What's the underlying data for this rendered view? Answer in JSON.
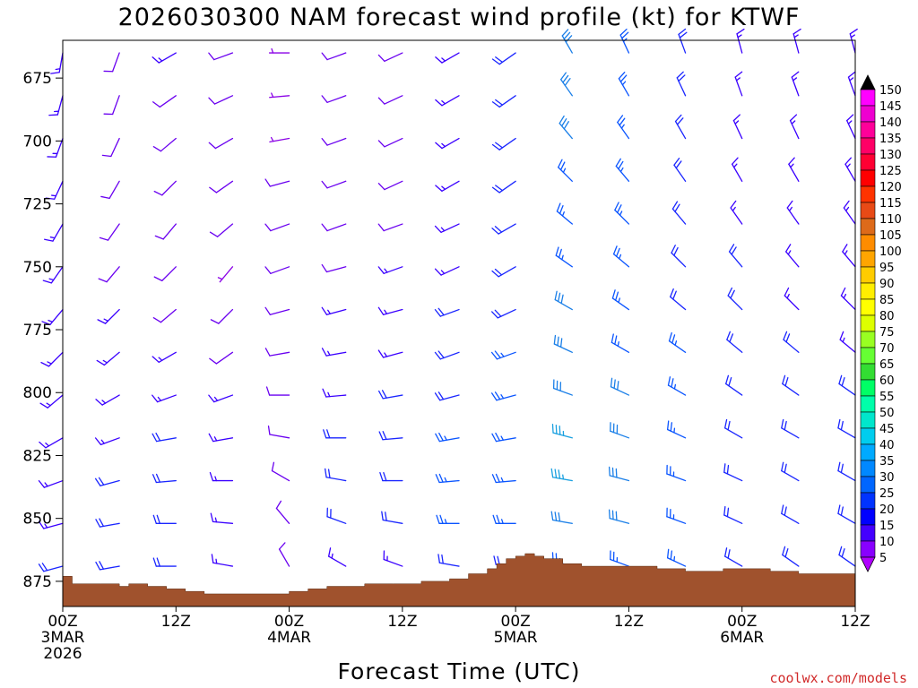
{
  "chart_data": {
    "type": "wind-barb-timeheight",
    "title": "2026030300 NAM forecast wind profile (kt) for KTWF",
    "xlabel": "Forecast Time (UTC)",
    "credit": "coolwx.com/models",
    "x_range_hours": [
      0,
      84
    ],
    "y_range_hPa": [
      885,
      660
    ],
    "y_ticks": [
      {
        "value": 675,
        "label": "675"
      },
      {
        "value": 700,
        "label": "700"
      },
      {
        "value": 725,
        "label": "725"
      },
      {
        "value": 750,
        "label": "750"
      },
      {
        "value": 775,
        "label": "775"
      },
      {
        "value": 800,
        "label": "800"
      },
      {
        "value": 825,
        "label": "825"
      },
      {
        "value": 850,
        "label": "850"
      },
      {
        "value": 875,
        "label": "875"
      }
    ],
    "x_ticks": [
      {
        "hour": 0,
        "lines": [
          "00Z",
          "3MAR",
          "2026"
        ]
      },
      {
        "hour": 12,
        "lines": [
          "12Z"
        ]
      },
      {
        "hour": 24,
        "lines": [
          "00Z",
          "4MAR"
        ]
      },
      {
        "hour": 36,
        "lines": [
          "12Z"
        ]
      },
      {
        "hour": 48,
        "lines": [
          "00Z",
          "5MAR"
        ]
      },
      {
        "hour": 60,
        "lines": [
          "12Z"
        ]
      },
      {
        "hour": 72,
        "lines": [
          "00Z",
          "6MAR"
        ]
      },
      {
        "hour": 84,
        "lines": [
          "12Z"
        ]
      }
    ],
    "colorbar": {
      "labels": [
        "150",
        "145",
        "140",
        "135",
        "130",
        "125",
        "120",
        "115",
        "110",
        "105",
        "100",
        "95",
        "90",
        "85",
        "80",
        "75",
        "70",
        "65",
        "60",
        "55",
        "50",
        "45",
        "40",
        "35",
        "30",
        "25",
        "20",
        "15",
        "10",
        "5"
      ],
      "colors": [
        "#000000",
        "#ff00ff",
        "#ee00d0",
        "#ff0099",
        "#ff0066",
        "#ff0033",
        "#ff0000",
        "#ff3300",
        "#e84a16",
        "#dd6a1a",
        "#ff8c00",
        "#ffa500",
        "#ffcc00",
        "#ffee00",
        "#ffff00",
        "#ddff00",
        "#99ff22",
        "#66ff33",
        "#33dd33",
        "#00ff66",
        "#00ffaa",
        "#00e6cc",
        "#00cdee",
        "#00aaff",
        "#0088ff",
        "#0066ff",
        "#0033ff",
        "#0000ff",
        "#4400ff",
        "#8800ff",
        "#b000ff"
      ]
    },
    "terrain_pressure_hPa": [
      {
        "hour": 0,
        "p": 873
      },
      {
        "hour": 1,
        "p": 876
      },
      {
        "hour": 4,
        "p": 876
      },
      {
        "hour": 6,
        "p": 877
      },
      {
        "hour": 7,
        "p": 876
      },
      {
        "hour": 9,
        "p": 877
      },
      {
        "hour": 11,
        "p": 878
      },
      {
        "hour": 13,
        "p": 879
      },
      {
        "hour": 15,
        "p": 880
      },
      {
        "hour": 17,
        "p": 880
      },
      {
        "hour": 20,
        "p": 880
      },
      {
        "hour": 22,
        "p": 880
      },
      {
        "hour": 24,
        "p": 879
      },
      {
        "hour": 26,
        "p": 878
      },
      {
        "hour": 28,
        "p": 877
      },
      {
        "hour": 30,
        "p": 877
      },
      {
        "hour": 32,
        "p": 876
      },
      {
        "hour": 35,
        "p": 876
      },
      {
        "hour": 38,
        "p": 875
      },
      {
        "hour": 41,
        "p": 874
      },
      {
        "hour": 43,
        "p": 872
      },
      {
        "hour": 45,
        "p": 870
      },
      {
        "hour": 46,
        "p": 868
      },
      {
        "hour": 47,
        "p": 866
      },
      {
        "hour": 48,
        "p": 865
      },
      {
        "hour": 49,
        "p": 864
      },
      {
        "hour": 50,
        "p": 865
      },
      {
        "hour": 51,
        "p": 866
      },
      {
        "hour": 53,
        "p": 868
      },
      {
        "hour": 55,
        "p": 869
      },
      {
        "hour": 57,
        "p": 869
      },
      {
        "hour": 60,
        "p": 869
      },
      {
        "hour": 63,
        "p": 870
      },
      {
        "hour": 66,
        "p": 871
      },
      {
        "hour": 69,
        "p": 871
      },
      {
        "hour": 70,
        "p": 870
      },
      {
        "hour": 72,
        "p": 870
      },
      {
        "hour": 75,
        "p": 871
      },
      {
        "hour": 78,
        "p": 872
      },
      {
        "hour": 81,
        "p": 872
      },
      {
        "hour": 84,
        "p": 872
      }
    ],
    "wind_levels_hPa": [
      665,
      682,
      699,
      716,
      733,
      750,
      767,
      784,
      801,
      818,
      835,
      852,
      869
    ],
    "wind_columns": [
      {
        "hour": 0,
        "speed_kt": [
          15,
          15,
          15,
          15,
          15,
          15,
          15,
          15,
          15,
          15,
          15,
          15,
          20
        ],
        "dir_deg": [
          190,
          195,
          200,
          205,
          210,
          215,
          220,
          225,
          230,
          240,
          250,
          255,
          255
        ]
      },
      {
        "hour": 6,
        "speed_kt": [
          10,
          10,
          10,
          10,
          10,
          10,
          15,
          15,
          15,
          15,
          20,
          20,
          20
        ],
        "dir_deg": [
          200,
          200,
          205,
          210,
          215,
          220,
          225,
          230,
          240,
          250,
          255,
          260,
          260
        ]
      },
      {
        "hour": 12,
        "speed_kt": [
          15,
          10,
          10,
          10,
          10,
          10,
          10,
          15,
          15,
          20,
          20,
          20,
          20
        ],
        "dir_deg": [
          240,
          235,
          230,
          225,
          220,
          225,
          230,
          240,
          250,
          260,
          265,
          270,
          270
        ]
      },
      {
        "hour": 18,
        "speed_kt": [
          10,
          10,
          10,
          10,
          10,
          5,
          10,
          10,
          15,
          15,
          15,
          15,
          15
        ],
        "dir_deg": [
          250,
          245,
          240,
          235,
          230,
          220,
          225,
          235,
          250,
          260,
          270,
          275,
          280
        ]
      },
      {
        "hour": 24,
        "speed_kt": [
          5,
          5,
          5,
          10,
          10,
          10,
          10,
          10,
          10,
          10,
          10,
          10,
          10
        ],
        "dir_deg": [
          270,
          265,
          260,
          255,
          250,
          250,
          255,
          260,
          270,
          280,
          300,
          320,
          330
        ]
      },
      {
        "hour": 30,
        "speed_kt": [
          10,
          10,
          10,
          10,
          10,
          10,
          15,
          15,
          15,
          20,
          20,
          20,
          15
        ],
        "dir_deg": [
          250,
          250,
          250,
          250,
          250,
          255,
          255,
          260,
          265,
          270,
          280,
          290,
          300
        ]
      },
      {
        "hour": 36,
        "speed_kt": [
          10,
          10,
          10,
          10,
          10,
          15,
          15,
          15,
          20,
          20,
          20,
          20,
          15
        ],
        "dir_deg": [
          245,
          245,
          245,
          245,
          250,
          250,
          255,
          255,
          260,
          265,
          270,
          280,
          290
        ]
      },
      {
        "hour": 42,
        "speed_kt": [
          15,
          15,
          15,
          15,
          15,
          15,
          20,
          20,
          20,
          25,
          25,
          25,
          20
        ],
        "dir_deg": [
          240,
          240,
          240,
          240,
          245,
          245,
          250,
          250,
          255,
          260,
          265,
          270,
          280
        ]
      },
      {
        "hour": 48,
        "speed_kt": [
          20,
          20,
          20,
          20,
          20,
          20,
          20,
          25,
          25,
          25,
          25,
          25,
          20
        ],
        "dir_deg": [
          235,
          235,
          235,
          235,
          240,
          240,
          245,
          250,
          255,
          260,
          265,
          270,
          275
        ]
      },
      {
        "hour": 54,
        "speed_kt": [
          30,
          30,
          30,
          25,
          25,
          25,
          30,
          30,
          30,
          35,
          35,
          30,
          25
        ],
        "dir_deg": [
          330,
          325,
          320,
          315,
          310,
          305,
          300,
          295,
          290,
          285,
          280,
          280,
          285
        ]
      },
      {
        "hour": 60,
        "speed_kt": [
          25,
          25,
          25,
          25,
          25,
          25,
          25,
          25,
          30,
          30,
          30,
          30,
          25
        ],
        "dir_deg": [
          335,
          330,
          325,
          320,
          315,
          310,
          305,
          300,
          295,
          290,
          285,
          285,
          290
        ]
      },
      {
        "hour": 66,
        "speed_kt": [
          20,
          20,
          20,
          20,
          20,
          20,
          20,
          25,
          25,
          25,
          25,
          25,
          25
        ],
        "dir_deg": [
          340,
          335,
          330,
          325,
          320,
          315,
          310,
          305,
          300,
          295,
          290,
          290,
          295
        ]
      },
      {
        "hour": 72,
        "speed_kt": [
          15,
          15,
          15,
          15,
          15,
          20,
          20,
          20,
          20,
          20,
          20,
          20,
          20
        ],
        "dir_deg": [
          345,
          340,
          335,
          330,
          325,
          320,
          315,
          310,
          305,
          300,
          295,
          295,
          300
        ]
      },
      {
        "hour": 78,
        "speed_kt": [
          15,
          15,
          15,
          15,
          15,
          15,
          15,
          20,
          20,
          20,
          20,
          20,
          20
        ],
        "dir_deg": [
          345,
          340,
          335,
          330,
          325,
          320,
          315,
          310,
          305,
          300,
          300,
          300,
          305
        ]
      },
      {
        "hour": 84,
        "speed_kt": [
          15,
          15,
          15,
          15,
          15,
          15,
          15,
          15,
          20,
          20,
          20,
          20,
          20
        ],
        "dir_deg": [
          345,
          340,
          335,
          330,
          325,
          320,
          315,
          310,
          305,
          300,
          300,
          300,
          305
        ]
      }
    ]
  }
}
